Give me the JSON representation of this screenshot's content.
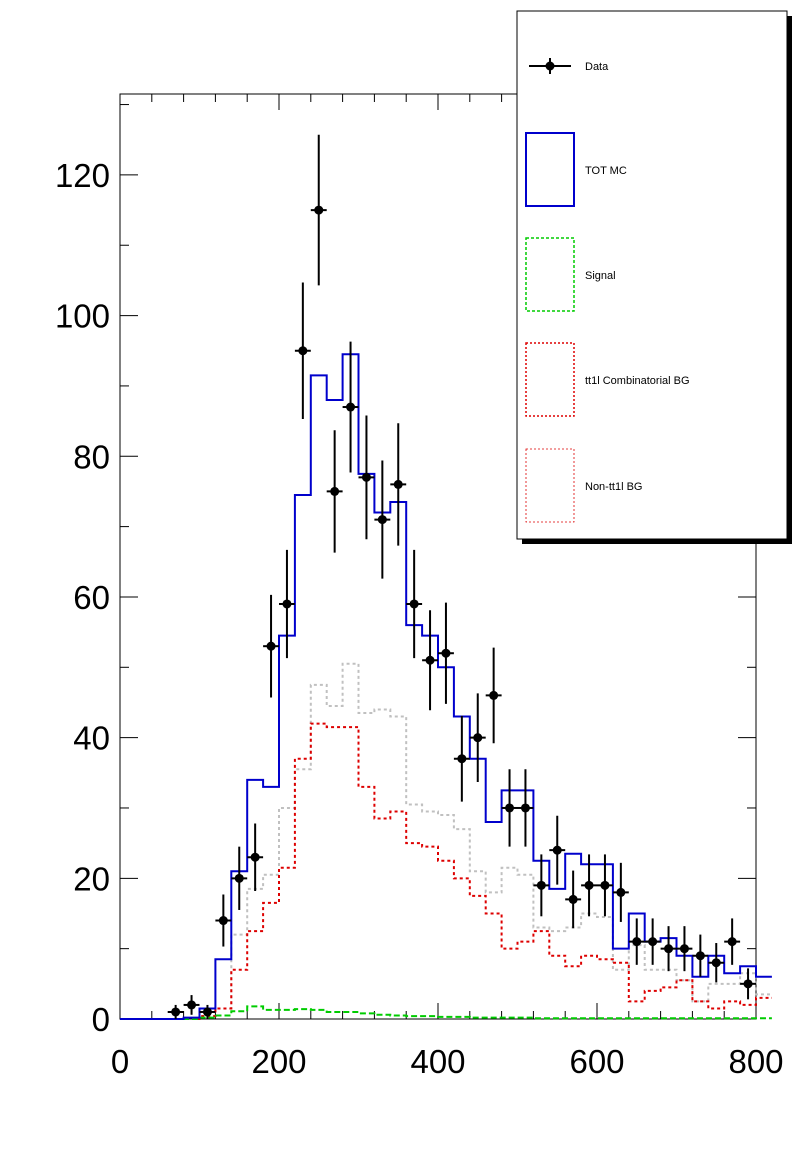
{
  "chart_data": {
    "type": "histogram",
    "title": "",
    "xlabel": "",
    "ylabel": "",
    "xlim": [
      0,
      800
    ],
    "ylim": [
      0,
      131.5
    ],
    "bin_width": 20,
    "x_ticks": [
      "0",
      "200",
      "400",
      "600",
      "800"
    ],
    "y_ticks": [
      "0",
      "20",
      "40",
      "60",
      "80",
      "100",
      "120"
    ],
    "legend": {
      "placement": "top-right",
      "entries": [
        {
          "key": "data",
          "label": "Data"
        },
        {
          "key": "tot",
          "label": "TOT MC"
        },
        {
          "key": "signal",
          "label": "Signal"
        },
        {
          "key": "comb",
          "label": "tt1l Combinatorial BG"
        },
        {
          "key": "nontt",
          "label": "Non-tt1l BG"
        }
      ]
    },
    "colors": {
      "data": "#000000",
      "tot": "#0000cc",
      "signal": "#00cc00",
      "comb": "#dd0000",
      "nontt": "#c0c0c0"
    },
    "data_points": [
      {
        "x": 70,
        "y": 1,
        "err": 1.0
      },
      {
        "x": 90,
        "y": 2,
        "err": 1.4
      },
      {
        "x": 110,
        "y": 1,
        "err": 1.0
      },
      {
        "x": 130,
        "y": 14,
        "err": 3.7
      },
      {
        "x": 150,
        "y": 20,
        "err": 4.5
      },
      {
        "x": 170,
        "y": 23,
        "err": 4.8
      },
      {
        "x": 190,
        "y": 53,
        "err": 7.3
      },
      {
        "x": 210,
        "y": 59,
        "err": 7.7
      },
      {
        "x": 230,
        "y": 95,
        "err": 9.7
      },
      {
        "x": 250,
        "y": 115,
        "err": 10.7
      },
      {
        "x": 270,
        "y": 75,
        "err": 8.7
      },
      {
        "x": 290,
        "y": 87,
        "err": 9.3
      },
      {
        "x": 310,
        "y": 77,
        "err": 8.8
      },
      {
        "x": 330,
        "y": 71,
        "err": 8.4
      },
      {
        "x": 350,
        "y": 76,
        "err": 8.7
      },
      {
        "x": 370,
        "y": 59,
        "err": 7.7
      },
      {
        "x": 390,
        "y": 51,
        "err": 7.1
      },
      {
        "x": 410,
        "y": 52,
        "err": 7.2
      },
      {
        "x": 430,
        "y": 37,
        "err": 6.1
      },
      {
        "x": 450,
        "y": 40,
        "err": 6.3
      },
      {
        "x": 470,
        "y": 46,
        "err": 6.8
      },
      {
        "x": 490,
        "y": 30,
        "err": 5.5
      },
      {
        "x": 510,
        "y": 30,
        "err": 5.5
      },
      {
        "x": 530,
        "y": 19,
        "err": 4.4
      },
      {
        "x": 550,
        "y": 24,
        "err": 4.9
      },
      {
        "x": 570,
        "y": 17,
        "err": 4.1
      },
      {
        "x": 590,
        "y": 19,
        "err": 4.4
      },
      {
        "x": 610,
        "y": 19,
        "err": 4.4
      },
      {
        "x": 630,
        "y": 18,
        "err": 4.2
      },
      {
        "x": 650,
        "y": 11,
        "err": 3.3
      },
      {
        "x": 670,
        "y": 11,
        "err": 3.3
      },
      {
        "x": 690,
        "y": 10,
        "err": 3.2
      },
      {
        "x": 710,
        "y": 10,
        "err": 3.2
      },
      {
        "x": 730,
        "y": 9,
        "err": 3.0
      },
      {
        "x": 750,
        "y": 8,
        "err": 2.8
      },
      {
        "x": 770,
        "y": 11,
        "err": 3.3
      },
      {
        "x": 790,
        "y": 5,
        "err": 2.2
      }
    ],
    "series": [
      {
        "key": "tot",
        "style": "solid",
        "values": [
          0,
          0,
          0,
          0,
          0.2,
          1.5,
          8.5,
          21,
          34,
          33,
          54.5,
          74.5,
          91.5,
          88,
          94.5,
          77.5,
          72,
          73.5,
          56,
          54.5,
          50,
          43,
          37,
          28,
          32.5,
          32.5,
          22.5,
          18.5,
          23.5,
          22,
          22,
          10,
          15,
          11,
          11.5,
          9,
          6,
          9,
          6.5,
          7.5,
          6
        ]
      },
      {
        "key": "signal",
        "style": "dashed",
        "values": [
          0,
          0,
          0,
          0,
          0,
          0.2,
          0.5,
          1.1,
          1.8,
          1.3,
          1.3,
          1.4,
          1.3,
          1.0,
          1.0,
          0.8,
          0.6,
          0.5,
          0.4,
          0.4,
          0.3,
          0.3,
          0.2,
          0.2,
          0.2,
          0.2,
          0.1,
          0.1,
          0.1,
          0.1,
          0.1,
          0.1,
          0.1,
          0.1,
          0.1,
          0.1,
          0.1,
          0.1,
          0.1,
          0.1,
          0.1
        ]
      },
      {
        "key": "comb",
        "style": "dotted",
        "values": [
          0,
          0,
          0,
          0,
          0,
          0.4,
          1.5,
          7,
          12.5,
          16.5,
          21.5,
          37,
          42,
          41.5,
          41.5,
          33,
          28.5,
          29.5,
          25,
          24.5,
          22.5,
          20,
          17.5,
          15,
          10,
          11,
          12.5,
          9,
          7.5,
          9,
          8.5,
          8,
          2.5,
          4,
          4.5,
          5.5,
          2.5,
          1.5,
          2.5,
          2,
          3
        ]
      },
      {
        "key": "nontt",
        "style": "dotted",
        "values": [
          0,
          0,
          0,
          0,
          0,
          0.4,
          1.5,
          12,
          18.5,
          20.5,
          30,
          35.5,
          47.5,
          44.5,
          50.5,
          43.5,
          44,
          43,
          30.5,
          29.5,
          29,
          27,
          21,
          18,
          21.5,
          20.5,
          13,
          12.5,
          13,
          15,
          14.5,
          7,
          10.5,
          7,
          7,
          5.5,
          2.5,
          5,
          5,
          6.5,
          3.5
        ]
      }
    ]
  }
}
